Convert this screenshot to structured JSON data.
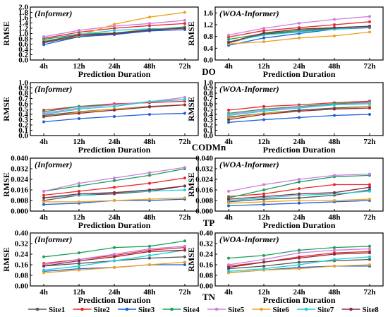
{
  "figure": {
    "row_labels": [
      "DO",
      "CODMn",
      "TP",
      "TN"
    ],
    "legend": [
      "Site1",
      "Site2",
      "Site3",
      "Site4",
      "Site5",
      "Site6",
      "Site7",
      "Site8"
    ],
    "colors": [
      "#555555",
      "#e8262b",
      "#1a5fd6",
      "#1aa05a",
      "#cc7ee0",
      "#f0a020",
      "#1ccfd8",
      "#8a2b3a"
    ]
  },
  "chart_data": [
    {
      "type": "line",
      "title": "(Informer)",
      "xlabel": "Prediction Duration",
      "ylabel": "RMSE",
      "categories": [
        "4h",
        "12h",
        "24h",
        "48h",
        "72h"
      ],
      "ylim": [
        0.0,
        2.0
      ],
      "yticks": [
        "0.0",
        "0.2",
        "0.4",
        "0.6",
        "0.8",
        "1.0",
        "1.2",
        "1.4",
        "1.6",
        "1.8",
        "2.0"
      ],
      "series": [
        {
          "name": "Site1",
          "values": [
            0.65,
            0.9,
            0.98,
            1.12,
            1.22
          ]
        },
        {
          "name": "Site2",
          "values": [
            0.82,
            1.05,
            1.2,
            1.3,
            1.38
          ]
        },
        {
          "name": "Site3",
          "values": [
            0.58,
            0.88,
            0.96,
            1.1,
            1.15
          ]
        },
        {
          "name": "Site4",
          "values": [
            0.78,
            0.98,
            1.02,
            1.15,
            1.25
          ]
        },
        {
          "name": "Site5",
          "values": [
            0.88,
            1.12,
            1.28,
            1.38,
            1.5
          ]
        },
        {
          "name": "Site6",
          "values": [
            0.72,
            0.92,
            1.35,
            1.62,
            1.8
          ]
        },
        {
          "name": "Site7",
          "values": [
            0.7,
            0.96,
            1.12,
            1.18,
            1.2
          ]
        },
        {
          "name": "Site8",
          "values": [
            0.68,
            0.95,
            1.0,
            1.14,
            1.2
          ]
        }
      ]
    },
    {
      "type": "line",
      "title": "(WOA-Informer)",
      "xlabel": "Prediction Duration",
      "ylabel": "RMSE",
      "categories": [
        "4h",
        "12h",
        "24h",
        "48h",
        "72h"
      ],
      "ylim": [
        0.0,
        1.8
      ],
      "yticks": [
        "0.0",
        "0.4",
        "0.8",
        "1.2",
        "1.6"
      ],
      "series": [
        {
          "name": "Site1",
          "values": [
            0.58,
            0.88,
            0.96,
            1.08,
            1.12
          ]
        },
        {
          "name": "Site2",
          "values": [
            0.78,
            1.0,
            1.1,
            1.2,
            1.3
          ]
        },
        {
          "name": "Site3",
          "values": [
            0.5,
            0.75,
            0.9,
            1.05,
            1.1
          ]
        },
        {
          "name": "Site4",
          "values": [
            0.7,
            0.9,
            1.0,
            1.1,
            1.15
          ]
        },
        {
          "name": "Site5",
          "values": [
            0.85,
            1.08,
            1.25,
            1.38,
            1.48
          ]
        },
        {
          "name": "Site6",
          "values": [
            0.55,
            0.62,
            0.75,
            0.82,
            0.95
          ]
        },
        {
          "name": "Site7",
          "values": [
            0.62,
            0.85,
            0.95,
            1.05,
            1.12
          ]
        },
        {
          "name": "Site8",
          "values": [
            0.6,
            0.92,
            1.05,
            1.1,
            1.15
          ]
        }
      ]
    },
    {
      "type": "line",
      "title": "(Informer)",
      "xlabel": "Prediction Duration",
      "ylabel": "RMSE",
      "categories": [
        "4h",
        "12h",
        "24h",
        "48h",
        "72h"
      ],
      "ylim": [
        0.0,
        1.0
      ],
      "yticks": [
        "0.0",
        "0.1",
        "0.2",
        "0.3",
        "0.4",
        "0.5",
        "0.6",
        "0.7",
        "0.8",
        "0.9",
        "1.0"
      ],
      "series": [
        {
          "name": "Site1",
          "values": [
            0.38,
            0.45,
            0.5,
            0.55,
            0.58
          ]
        },
        {
          "name": "Site2",
          "values": [
            0.48,
            0.55,
            0.6,
            0.62,
            0.65
          ]
        },
        {
          "name": "Site3",
          "values": [
            0.26,
            0.32,
            0.36,
            0.4,
            0.42
          ]
        },
        {
          "name": "Site4",
          "values": [
            0.45,
            0.55,
            0.58,
            0.64,
            0.68
          ]
        },
        {
          "name": "Site5",
          "values": [
            0.42,
            0.52,
            0.58,
            0.64,
            0.72
          ]
        },
        {
          "name": "Site6",
          "values": [
            0.35,
            0.44,
            0.5,
            0.54,
            0.58
          ]
        },
        {
          "name": "Site7",
          "values": [
            0.4,
            0.5,
            0.55,
            0.64,
            0.68
          ]
        },
        {
          "name": "Site8",
          "values": [
            0.36,
            0.42,
            0.48,
            0.54,
            0.58
          ]
        }
      ]
    },
    {
      "type": "line",
      "title": "(WOA-Informer)",
      "xlabel": "Prediction Duration",
      "ylabel": "RMSE",
      "categories": [
        "4h",
        "12h",
        "24h",
        "48h",
        "72h"
      ],
      "ylim": [
        0.0,
        1.0
      ],
      "yticks": [
        "0.0",
        "0.1",
        "0.2",
        "0.3",
        "0.4",
        "0.5",
        "0.6",
        "0.7",
        "0.8",
        "0.9",
        "1.0"
      ],
      "series": [
        {
          "name": "Site1",
          "values": [
            0.35,
            0.42,
            0.48,
            0.52,
            0.55
          ]
        },
        {
          "name": "Site2",
          "values": [
            0.48,
            0.55,
            0.58,
            0.62,
            0.65
          ]
        },
        {
          "name": "Site3",
          "values": [
            0.25,
            0.3,
            0.34,
            0.38,
            0.4
          ]
        },
        {
          "name": "Site4",
          "values": [
            0.42,
            0.5,
            0.55,
            0.6,
            0.63
          ]
        },
        {
          "name": "Site5",
          "values": [
            0.4,
            0.48,
            0.54,
            0.58,
            0.62
          ]
        },
        {
          "name": "Site6",
          "values": [
            0.33,
            0.42,
            0.46,
            0.5,
            0.55
          ]
        },
        {
          "name": "Site7",
          "values": [
            0.38,
            0.46,
            0.52,
            0.58,
            0.6
          ]
        },
        {
          "name": "Site8",
          "values": [
            0.3,
            0.4,
            0.46,
            0.5,
            0.52
          ]
        }
      ]
    },
    {
      "type": "line",
      "title": "(Informer)",
      "xlabel": "Prediction Duration",
      "ylabel": "RMSE",
      "categories": [
        "4h",
        "12h",
        "24h",
        "48h",
        "72h"
      ],
      "ylim": [
        0.0,
        0.04
      ],
      "yticks": [
        "0.000",
        "0.008",
        "0.016",
        "0.024",
        "0.032",
        "0.040"
      ],
      "series": [
        {
          "name": "Site1",
          "values": [
            0.008,
            0.012,
            0.013,
            0.015,
            0.019
          ]
        },
        {
          "name": "Site2",
          "values": [
            0.012,
            0.015,
            0.018,
            0.021,
            0.025
          ]
        },
        {
          "name": "Site3",
          "values": [
            0.005,
            0.006,
            0.008,
            0.008,
            0.009
          ]
        },
        {
          "name": "Site4",
          "values": [
            0.015,
            0.019,
            0.023,
            0.027,
            0.032
          ]
        },
        {
          "name": "Site5",
          "values": [
            0.015,
            0.021,
            0.025,
            0.029,
            0.033
          ]
        },
        {
          "name": "Site6",
          "values": [
            0.007,
            0.007,
            0.008,
            0.009,
            0.01
          ]
        },
        {
          "name": "Site7",
          "values": [
            0.01,
            0.012,
            0.014,
            0.015,
            0.016
          ]
        },
        {
          "name": "Site8",
          "values": [
            0.01,
            0.013,
            0.014,
            0.016,
            0.019
          ]
        }
      ]
    },
    {
      "type": "line",
      "title": "(WOA-Informer)",
      "xlabel": "Prediction Duration",
      "ylabel": "RMSE",
      "categories": [
        "4h",
        "12h",
        "24h",
        "48h",
        "72h"
      ],
      "ylim": [
        0.0,
        0.04
      ],
      "yticks": [
        "0.000",
        "0.008",
        "0.016",
        "0.024",
        "0.032",
        "0.040"
      ],
      "series": [
        {
          "name": "Site1",
          "values": [
            0.007,
            0.009,
            0.01,
            0.012,
            0.016
          ]
        },
        {
          "name": "Site2",
          "values": [
            0.011,
            0.013,
            0.017,
            0.02,
            0.02
          ]
        },
        {
          "name": "Site3",
          "values": [
            0.004,
            0.005,
            0.006,
            0.007,
            0.008
          ]
        },
        {
          "name": "Site4",
          "values": [
            0.01,
            0.016,
            0.022,
            0.026,
            0.027
          ]
        },
        {
          "name": "Site5",
          "values": [
            0.015,
            0.02,
            0.024,
            0.027,
            0.028
          ]
        },
        {
          "name": "Site6",
          "values": [
            0.006,
            0.007,
            0.008,
            0.008,
            0.009
          ]
        },
        {
          "name": "Site7",
          "values": [
            0.008,
            0.01,
            0.012,
            0.013,
            0.015
          ]
        },
        {
          "name": "Site8",
          "values": [
            0.009,
            0.011,
            0.013,
            0.014,
            0.018
          ]
        }
      ]
    },
    {
      "type": "line",
      "title": "(Informer)",
      "xlabel": "Prediction Duration",
      "ylabel": "RMSE",
      "categories": [
        "4h",
        "12h",
        "24h",
        "48h",
        "72h"
      ],
      "ylim": [
        0.0,
        0.4
      ],
      "yticks": [
        "0.00",
        "0.08",
        "0.16",
        "0.24",
        "0.32",
        "0.40"
      ],
      "series": [
        {
          "name": "Site1",
          "values": [
            0.15,
            0.17,
            0.19,
            0.21,
            0.22
          ]
        },
        {
          "name": "Site2",
          "values": [
            0.17,
            0.2,
            0.23,
            0.27,
            0.29
          ]
        },
        {
          "name": "Site3",
          "values": [
            0.11,
            0.13,
            0.14,
            0.16,
            0.16
          ]
        },
        {
          "name": "Site4",
          "values": [
            0.22,
            0.25,
            0.29,
            0.3,
            0.34
          ]
        },
        {
          "name": "Site5",
          "values": [
            0.16,
            0.2,
            0.24,
            0.28,
            0.3
          ]
        },
        {
          "name": "Site6",
          "values": [
            0.1,
            0.12,
            0.14,
            0.16,
            0.18
          ]
        },
        {
          "name": "Site7",
          "values": [
            0.12,
            0.15,
            0.19,
            0.23,
            0.27
          ]
        },
        {
          "name": "Site8",
          "values": [
            0.15,
            0.19,
            0.22,
            0.26,
            0.27
          ]
        }
      ]
    },
    {
      "type": "line",
      "title": "(WOA-Informer)",
      "xlabel": "Prediction Duration",
      "ylabel": "RMSE",
      "categories": [
        "4h",
        "12h",
        "24h",
        "48h",
        "72h"
      ],
      "ylim": [
        0.0,
        0.4
      ],
      "yticks": [
        "0.00",
        "0.08",
        "0.16",
        "0.24",
        "0.32",
        "0.40"
      ],
      "series": [
        {
          "name": "Site1",
          "values": [
            0.13,
            0.15,
            0.18,
            0.19,
            0.2
          ]
        },
        {
          "name": "Site2",
          "values": [
            0.15,
            0.18,
            0.22,
            0.25,
            0.26
          ]
        },
        {
          "name": "Site3",
          "values": [
            0.1,
            0.12,
            0.14,
            0.15,
            0.15
          ]
        },
        {
          "name": "Site4",
          "values": [
            0.21,
            0.23,
            0.27,
            0.29,
            0.3
          ]
        },
        {
          "name": "Site5",
          "values": [
            0.16,
            0.2,
            0.25,
            0.27,
            0.28
          ]
        },
        {
          "name": "Site6",
          "values": [
            0.1,
            0.12,
            0.13,
            0.15,
            0.16
          ]
        },
        {
          "name": "Site7",
          "values": [
            0.11,
            0.13,
            0.16,
            0.2,
            0.22
          ]
        },
        {
          "name": "Site8",
          "values": [
            0.14,
            0.18,
            0.21,
            0.24,
            0.25
          ]
        }
      ]
    }
  ]
}
